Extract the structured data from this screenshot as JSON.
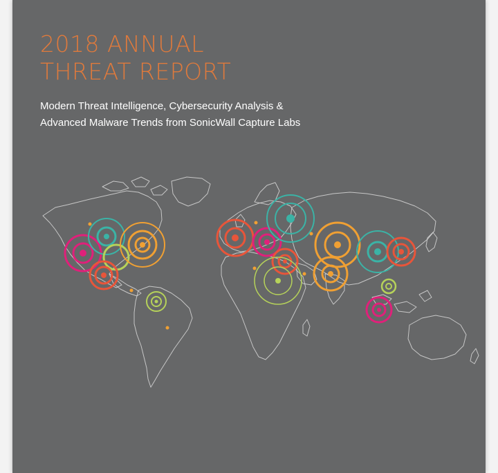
{
  "cover": {
    "title_line1": "2018 ANNUAL",
    "title_line2": "THREAT REPORT",
    "subtitle_line1": "Modern Threat Intelligence, Cybersecurity Analysis &",
    "subtitle_line2": "Advanced Malware Trends from SonicWall Capture Labs"
  },
  "colors": {
    "background": "#666768",
    "title": "#e07a3c",
    "subtitle": "#ffffff",
    "map_outline": "#d8d8d8",
    "teal": "#3bb3a6",
    "orange": "#f0a033",
    "magenta": "#e0207a",
    "red_orange": "#e8553a",
    "lime": "#b6d25a"
  }
}
